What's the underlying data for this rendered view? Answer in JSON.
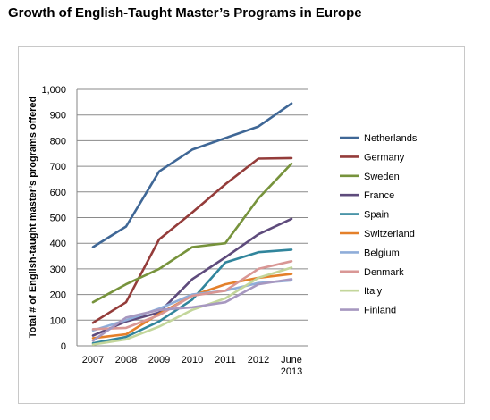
{
  "title": "Growth of English-Taught Master’s Programs in Europe",
  "chart_data": {
    "type": "line",
    "title": "Growth of English-Taught Master’s Programs in Europe",
    "xlabel": "",
    "ylabel": "Total # of English-taught master’s programs offered",
    "categories": [
      "2007",
      "2008",
      "2009",
      "2010",
      "2011",
      "2012",
      "June 2013"
    ],
    "category_lines": [
      [
        "2007"
      ],
      [
        "2008"
      ],
      [
        "2009"
      ],
      [
        "2010"
      ],
      [
        "2011"
      ],
      [
        "2012"
      ],
      [
        "June",
        "2013"
      ]
    ],
    "ylim": [
      0,
      1000
    ],
    "yticks": [
      0,
      100,
      200,
      300,
      400,
      500,
      600,
      700,
      800,
      900,
      1000
    ],
    "ytick_labels": [
      "0",
      "100",
      "200",
      "300",
      "400",
      "500",
      "600",
      "700",
      "800",
      "900",
      "1,000"
    ],
    "grid": true,
    "legend_position": "right",
    "series": [
      {
        "name": "Netherlands",
        "color": "#3f6796",
        "values": [
          385,
          465,
          680,
          765,
          810,
          855,
          945
        ]
      },
      {
        "name": "Germany",
        "color": "#943c3a",
        "values": [
          90,
          170,
          415,
          520,
          630,
          730,
          732
        ]
      },
      {
        "name": "Sweden",
        "color": "#77933c",
        "values": [
          170,
          240,
          300,
          385,
          400,
          575,
          710
        ]
      },
      {
        "name": "France",
        "color": "#5e4b7c",
        "values": [
          40,
          95,
          130,
          260,
          345,
          435,
          495
        ]
      },
      {
        "name": "Spain",
        "color": "#31859c",
        "values": [
          10,
          35,
          95,
          180,
          325,
          365,
          375
        ]
      },
      {
        "name": "Switzerland",
        "color": "#e4802a",
        "values": [
          30,
          45,
          125,
          195,
          240,
          265,
          280
        ]
      },
      {
        "name": "Belgium",
        "color": "#8fadd9",
        "values": [
          60,
          100,
          145,
          200,
          215,
          245,
          255
        ]
      },
      {
        "name": "Denmark",
        "color": "#d99795",
        "values": [
          65,
          70,
          120,
          195,
          215,
          300,
          330
        ]
      },
      {
        "name": "Italy",
        "color": "#c3d69b",
        "values": [
          5,
          25,
          75,
          140,
          185,
          265,
          305
        ]
      },
      {
        "name": "Finland",
        "color": "#a798c0",
        "values": [
          20,
          110,
          140,
          150,
          170,
          240,
          260
        ]
      }
    ]
  }
}
